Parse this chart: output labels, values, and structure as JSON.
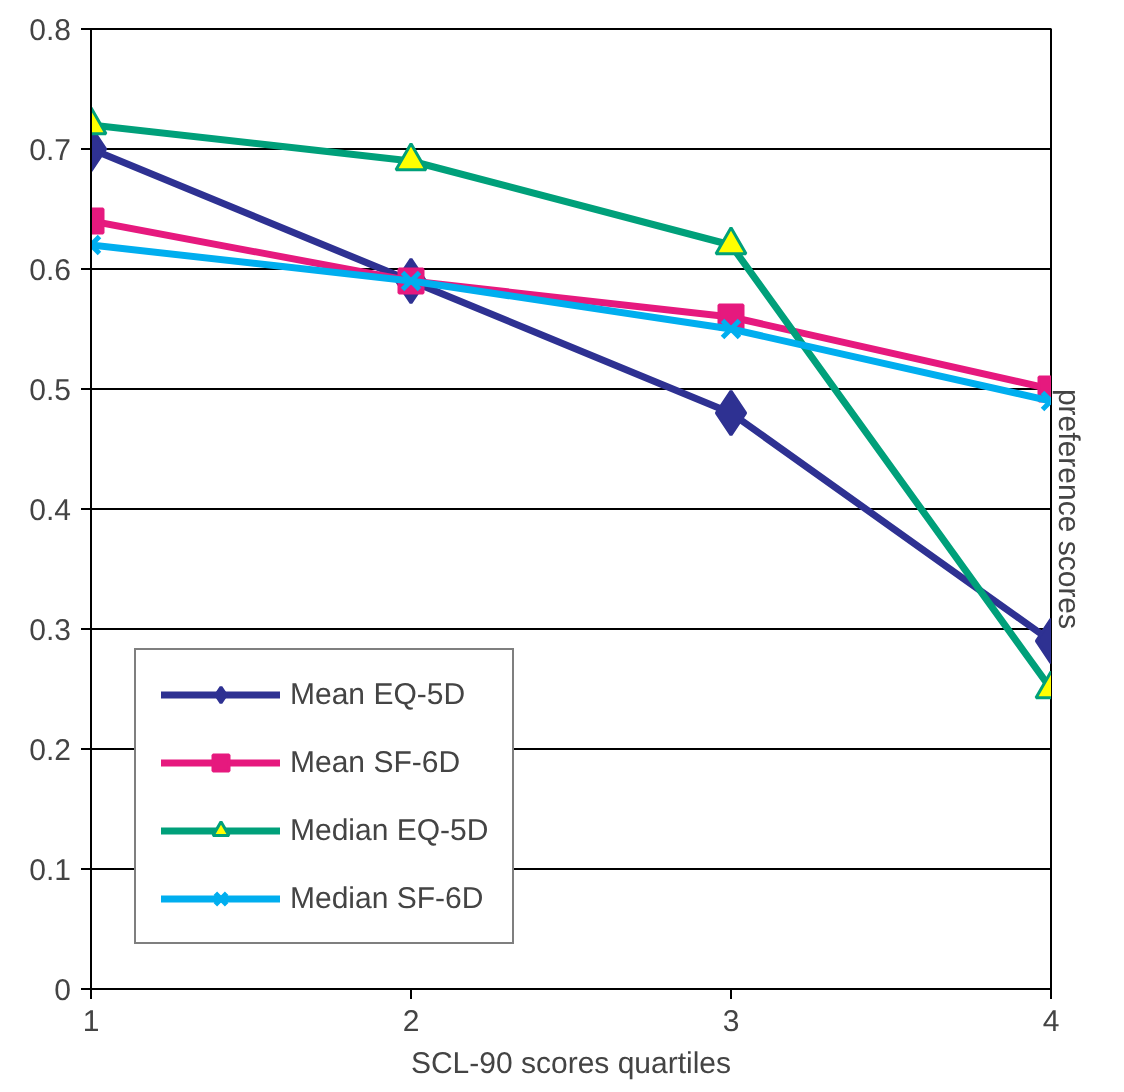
{
  "chart_data": {
    "type": "line",
    "xlabel": "SCL-90 scores quartiles",
    "ylabel": "preference scores",
    "x": [
      1,
      2,
      3,
      4
    ],
    "xlim": [
      1,
      4
    ],
    "xticks": [
      1,
      2,
      3,
      4
    ],
    "ylim": [
      0,
      0.8
    ],
    "yticks": [
      0,
      0.1,
      0.2,
      0.3,
      0.4,
      0.5,
      0.6,
      0.7,
      0.8
    ],
    "grid": "y",
    "legend": "bottom left",
    "line_style": "solid",
    "series": [
      {
        "name": "Mean EQ-5D",
        "color": "#2e3192",
        "marker": "diamond",
        "values": [
          0.7,
          0.59,
          0.48,
          0.29
        ]
      },
      {
        "name": "Mean SF-6D",
        "color": "#e6197e",
        "marker": "square",
        "values": [
          0.64,
          0.59,
          0.56,
          0.5
        ]
      },
      {
        "name": "Median EQ-5D",
        "color": "#00a07a",
        "marker": "triangle",
        "values": [
          0.72,
          0.69,
          0.62,
          0.25
        ]
      },
      {
        "name": "Median SF-6D",
        "color": "#00aeef",
        "marker": "cross",
        "values": [
          0.62,
          0.59,
          0.55,
          0.49
        ]
      }
    ]
  }
}
